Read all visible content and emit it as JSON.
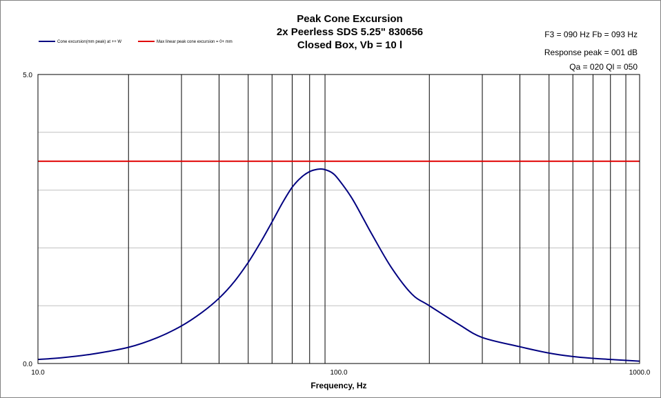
{
  "chart_data": {
    "type": "line",
    "title": [
      "Peak Cone Excursion",
      "2x Peerless SDS 5.25\" 830656",
      "Closed Box, Vb = 10 l"
    ],
    "info": [
      "F3 = 090  Hz  Fb = 093  Hz",
      "Response peak = 001  dB",
      "Qa = 020   Ql = 050"
    ],
    "xlabel": "Frequency, Hz",
    "ylabel": "",
    "x_scale": "log",
    "xlim": [
      10,
      1000
    ],
    "ylim": [
      0,
      5
    ],
    "x_tick_labels": [
      "10.0",
      "100.0",
      "1000.0"
    ],
    "y_tick_labels": [
      "0.0",
      "5.0"
    ],
    "grid": true,
    "legend_position": "top-left",
    "series": [
      {
        "name": "Cone excursion(mm peak) at ++ W",
        "color": "#000080",
        "x": [
          10,
          12,
          15,
          20,
          25,
          30,
          35,
          40,
          45,
          50,
          55,
          60,
          65,
          70,
          75,
          80,
          85,
          89,
          95,
          100,
          110,
          120,
          130,
          150,
          175,
          200,
          250,
          300,
          400,
          500,
          600,
          700,
          800,
          1000
        ],
        "y": [
          0.07,
          0.1,
          0.16,
          0.28,
          0.45,
          0.65,
          0.88,
          1.13,
          1.42,
          1.75,
          2.1,
          2.45,
          2.78,
          3.05,
          3.22,
          3.32,
          3.36,
          3.36,
          3.3,
          3.18,
          2.88,
          2.53,
          2.2,
          1.65,
          1.2,
          1.0,
          0.68,
          0.45,
          0.29,
          0.18,
          0.12,
          0.09,
          0.07,
          0.04
        ]
      },
      {
        "name": "Max linear peak cone excursion = 0+ mm",
        "color": "#e00000",
        "x": [
          10,
          1000
        ],
        "y": [
          3.5,
          3.5
        ]
      }
    ]
  }
}
